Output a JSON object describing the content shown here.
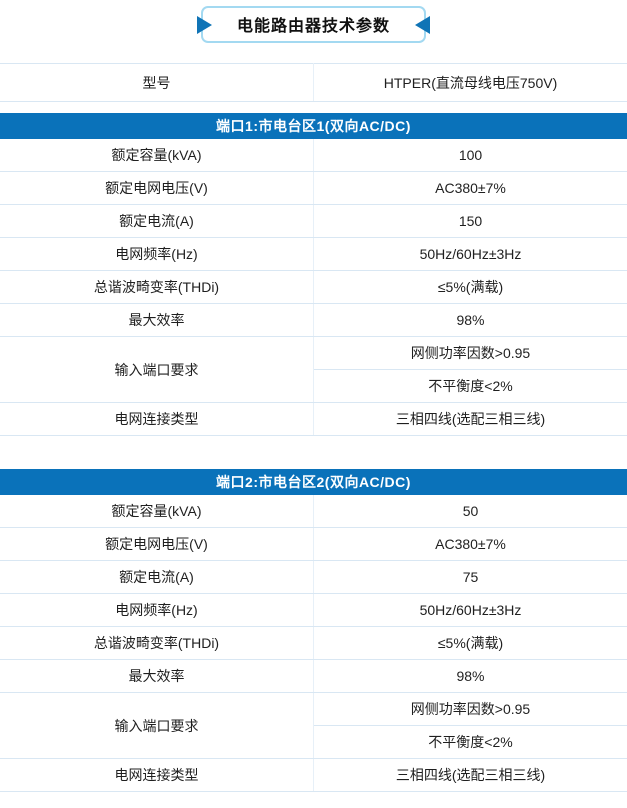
{
  "page": {
    "title": "电能路由器技术参数"
  },
  "colors": {
    "header_blue": "#0a72ba",
    "badge_border_blue": "#a3d9f1",
    "arrow_blue": "#1074b6",
    "row_border": "#d9e7f3"
  },
  "model_row": {
    "label": "型号",
    "value": "HTPER(直流母线电压750V)"
  },
  "sections": [
    {
      "header": "端口1:市电台区1(双向AC/DC)",
      "rows": [
        {
          "label": "额定容量(kVA)",
          "values": [
            "100"
          ]
        },
        {
          "label": "额定电网电压(V)",
          "values": [
            "AC380±7%"
          ]
        },
        {
          "label": "额定电流(A)",
          "values": [
            "150"
          ]
        },
        {
          "label": "电网频率(Hz)",
          "values": [
            "50Hz/60Hz±3Hz"
          ]
        },
        {
          "label": "总谐波畸变率(THDi)",
          "values": [
            "≤5%(满载)"
          ]
        },
        {
          "label": "最大效率",
          "values": [
            "98%"
          ]
        },
        {
          "label": "输入端口要求",
          "values": [
            "网侧功率因数>0.95",
            "不平衡度<2%"
          ]
        },
        {
          "label": "电网连接类型",
          "values": [
            "三相四线(选配三相三线)"
          ]
        }
      ]
    },
    {
      "header": "端口2:市电台区2(双向AC/DC)",
      "rows": [
        {
          "label": "额定容量(kVA)",
          "values": [
            "50"
          ]
        },
        {
          "label": "额定电网电压(V)",
          "values": [
            "AC380±7%"
          ]
        },
        {
          "label": "额定电流(A)",
          "values": [
            "75"
          ]
        },
        {
          "label": "电网频率(Hz)",
          "values": [
            "50Hz/60Hz±3Hz"
          ]
        },
        {
          "label": "总谐波畸变率(THDi)",
          "values": [
            "≤5%(满载)"
          ]
        },
        {
          "label": "最大效率",
          "values": [
            "98%"
          ]
        },
        {
          "label": "输入端口要求",
          "values": [
            "网侧功率因数>0.95",
            "不平衡度<2%"
          ]
        },
        {
          "label": "电网连接类型",
          "values": [
            "三相四线(选配三相三线)"
          ]
        }
      ]
    }
  ]
}
